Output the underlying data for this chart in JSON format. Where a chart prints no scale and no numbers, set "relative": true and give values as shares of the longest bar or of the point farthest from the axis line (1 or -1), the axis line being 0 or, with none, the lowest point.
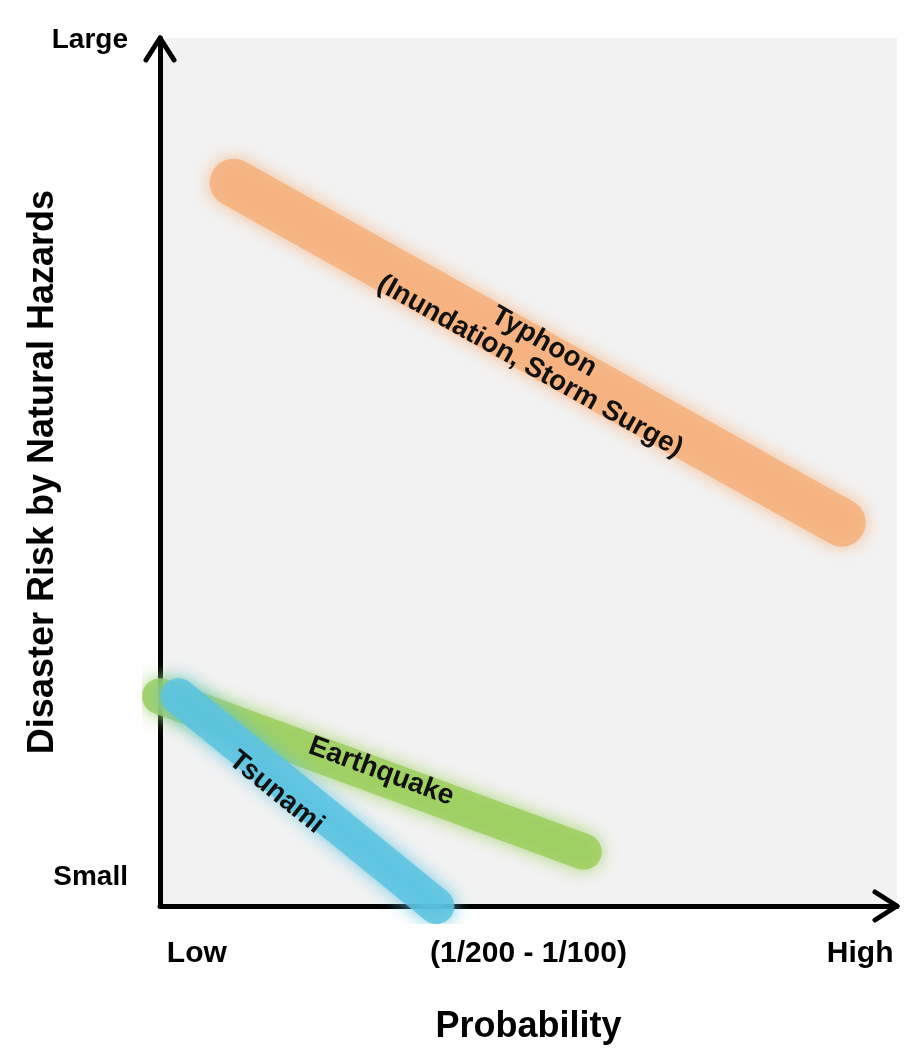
{
  "chart_data": {
    "type": "line",
    "relative": true,
    "xlabel": "Probability",
    "ylabel": "Disaster Risk by Natural Hazards",
    "categories": [
      null,
      null,
      "Low",
      null,
      null,
      null,
      null,
      null,
      null,
      null,
      null,
      null,
      null,
      null,
      null,
      null,
      null,
      null,
      null,
      null,
      "(1/200 - 1/100)",
      null,
      null,
      null,
      null,
      null,
      null,
      null,
      null,
      null,
      null,
      null,
      null,
      null,
      null,
      null,
      null,
      null,
      "High",
      null,
      null
    ],
    "annotations": [
      "Small",
      "Large"
    ],
    "grid": false,
    "legend": false,
    "marker": "none",
    "line_style": "solid",
    "series": [
      {
        "name": "Typhoon\n(Inundation, Storm Surge)",
        "color": "#f6b27e",
        "values": [
          null,
          null,
          null,
          null,
          1,
          null,
          null,
          null,
          null,
          null,
          null,
          null,
          null,
          null,
          null,
          null,
          null,
          null,
          null,
          null,
          null,
          null,
          null,
          null,
          null,
          null,
          null,
          null,
          null,
          null,
          null,
          null,
          null,
          null,
          null,
          null,
          null,
          0.53,
          null,
          null,
          null
        ]
      },
      {
        "name": "Earthquake",
        "color": "#9ccf5e",
        "values": [
          0.29,
          null,
          null,
          null,
          null,
          null,
          null,
          null,
          null,
          null,
          null,
          null,
          null,
          null,
          null,
          null,
          null,
          null,
          null,
          null,
          null,
          null,
          null,
          0.075,
          null,
          null,
          null,
          null,
          null,
          null,
          null,
          null,
          null,
          null,
          null,
          null,
          null,
          null,
          null,
          null,
          null
        ]
      },
      {
        "name": "Tsunami",
        "color": "#5cc3e0",
        "values": [
          null,
          0.29,
          null,
          null,
          null,
          null,
          null,
          null,
          null,
          null,
          null,
          null,
          null,
          null,
          null,
          0,
          null,
          null,
          null,
          null,
          null,
          null,
          null,
          null,
          null,
          null,
          null,
          null,
          null,
          null,
          null,
          null,
          null,
          null,
          null,
          null,
          null,
          null,
          null,
          null,
          null
        ]
      }
    ]
  }
}
